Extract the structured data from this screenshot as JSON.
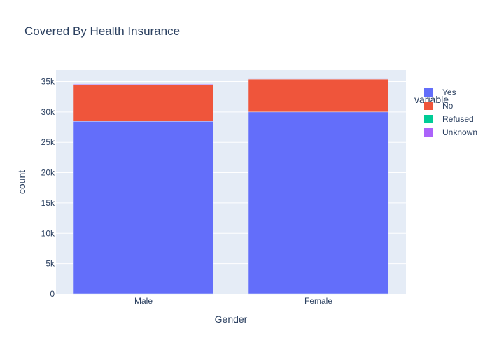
{
  "chart_data": {
    "type": "bar",
    "barmode": "stack",
    "title": "Covered By Health Insurance",
    "xlabel": "Gender",
    "ylabel": "count",
    "categories": [
      "Male",
      "Female"
    ],
    "series": [
      {
        "name": "Yes",
        "color": "#636efa",
        "values": [
          28450,
          30000
        ]
      },
      {
        "name": "No",
        "color": "#ef553b",
        "values": [
          6050,
          5400
        ]
      },
      {
        "name": "Refused",
        "color": "#00cc96",
        "values": [
          20,
          15
        ]
      },
      {
        "name": "Unknown",
        "color": "#ab63fa",
        "values": [
          110,
          70
        ]
      }
    ],
    "ylim": [
      0,
      36900
    ],
    "yticks": [
      0,
      5000,
      10000,
      15000,
      20000,
      25000,
      30000,
      35000
    ],
    "ytick_labels": [
      "0",
      "5k",
      "10k",
      "15k",
      "20k",
      "25k",
      "30k",
      "35k"
    ],
    "legend_title": "variable",
    "legend_position": "top-right",
    "grid": true,
    "plot_background": "#e5ecf6"
  }
}
